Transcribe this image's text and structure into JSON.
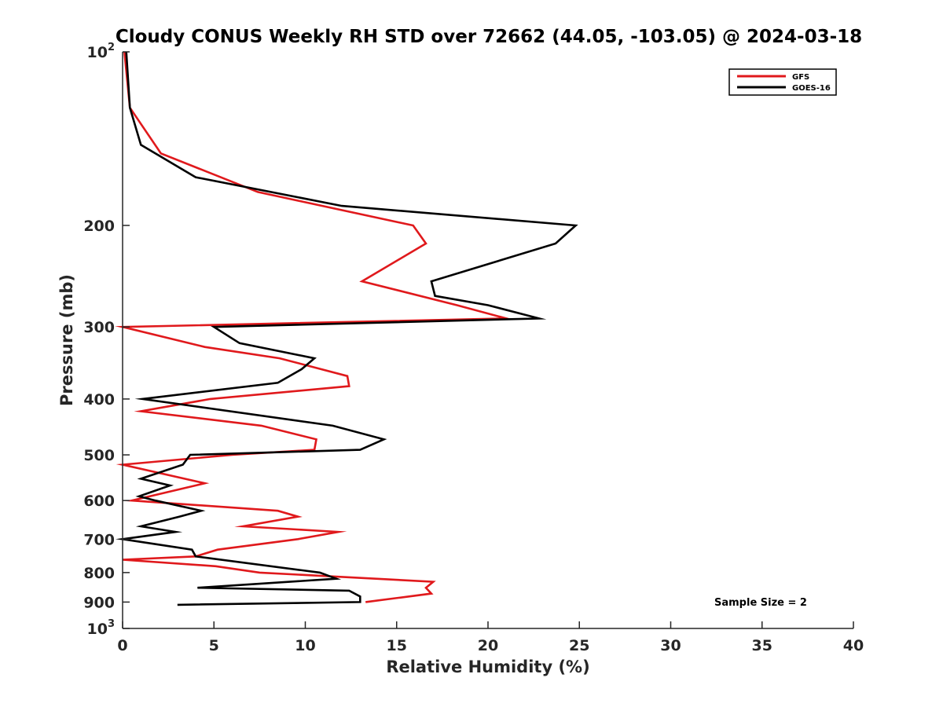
{
  "chart_data": {
    "type": "line",
    "title": "Cloudy CONUS Weekly RH STD over 72662 (44.05, -103.05) @ 2024-03-18",
    "xlabel": "Relative Humidity (%)",
    "ylabel": "Pressure (mb)",
    "xlim": [
      0,
      40
    ],
    "ylim": [
      100,
      1000
    ],
    "y_scale": "log",
    "y_reversed": true,
    "grid": false,
    "legend_position": "top-right",
    "x_ticks": [
      "0",
      "5",
      "10",
      "15",
      "20",
      "25",
      "30",
      "35",
      "40"
    ],
    "y_ticks": [
      {
        "value": 100,
        "base": "10",
        "exp": "2"
      },
      {
        "value": 200,
        "label": "200"
      },
      {
        "value": 300,
        "label": "300"
      },
      {
        "value": 400,
        "label": "400"
      },
      {
        "value": 500,
        "label": "500"
      },
      {
        "value": 600,
        "label": "600"
      },
      {
        "value": 700,
        "label": "700"
      },
      {
        "value": 800,
        "label": "800"
      },
      {
        "value": 900,
        "label": "900"
      },
      {
        "value": 1000,
        "base": "10",
        "exp": "3"
      }
    ],
    "annotation": "Sample Size = 2",
    "series": [
      {
        "name": "GFS",
        "color": "#e0191c",
        "points": [
          [
            0.1,
            100
          ],
          [
            0.4,
            125
          ],
          [
            2.1,
            150
          ],
          [
            7.4,
            175
          ],
          [
            15.9,
            200
          ],
          [
            16.6,
            215
          ],
          [
            13.1,
            250
          ],
          [
            18.3,
            275
          ],
          [
            21.0,
            290
          ],
          [
            0.0,
            300
          ],
          [
            4.5,
            325
          ],
          [
            8.6,
            340
          ],
          [
            12.3,
            365
          ],
          [
            12.4,
            380
          ],
          [
            4.8,
            400
          ],
          [
            1.0,
            420
          ],
          [
            7.6,
            445
          ],
          [
            10.6,
            470
          ],
          [
            10.5,
            490
          ],
          [
            6.0,
            500
          ],
          [
            0.0,
            520
          ],
          [
            4.5,
            560
          ],
          [
            0.5,
            600
          ],
          [
            8.5,
            625
          ],
          [
            9.6,
            640
          ],
          [
            6.6,
            665
          ],
          [
            11.8,
            680
          ],
          [
            9.6,
            700
          ],
          [
            5.2,
            730
          ],
          [
            4.0,
            750
          ],
          [
            0.0,
            760
          ],
          [
            5.1,
            780
          ],
          [
            7.5,
            800
          ],
          [
            17.0,
            830
          ],
          [
            16.6,
            850
          ],
          [
            16.9,
            870
          ],
          [
            13.3,
            900
          ]
        ]
      },
      {
        "name": "GOES-16",
        "color": "#000000",
        "points": [
          [
            0.2,
            100
          ],
          [
            0.4,
            125
          ],
          [
            1.0,
            145
          ],
          [
            4.0,
            165
          ],
          [
            12.0,
            185
          ],
          [
            24.8,
            200
          ],
          [
            23.7,
            215
          ],
          [
            16.9,
            250
          ],
          [
            17.1,
            265
          ],
          [
            20.0,
            275
          ],
          [
            22.8,
            290
          ],
          [
            5.0,
            300
          ],
          [
            6.4,
            320
          ],
          [
            10.5,
            340
          ],
          [
            9.8,
            355
          ],
          [
            8.5,
            375
          ],
          [
            1.1,
            400
          ],
          [
            11.5,
            445
          ],
          [
            14.3,
            470
          ],
          [
            13.0,
            490
          ],
          [
            3.7,
            500
          ],
          [
            3.3,
            520
          ],
          [
            1.0,
            550
          ],
          [
            2.6,
            565
          ],
          [
            0.9,
            590
          ],
          [
            1.8,
            600
          ],
          [
            4.3,
            625
          ],
          [
            3.1,
            640
          ],
          [
            1.0,
            665
          ],
          [
            2.9,
            680
          ],
          [
            0.0,
            700
          ],
          [
            3.8,
            730
          ],
          [
            4.0,
            750
          ],
          [
            10.8,
            800
          ],
          [
            11.7,
            820
          ],
          [
            4.1,
            850
          ],
          [
            12.4,
            860
          ],
          [
            13.0,
            880
          ],
          [
            13.0,
            900
          ],
          [
            3.0,
            910
          ]
        ]
      }
    ]
  }
}
